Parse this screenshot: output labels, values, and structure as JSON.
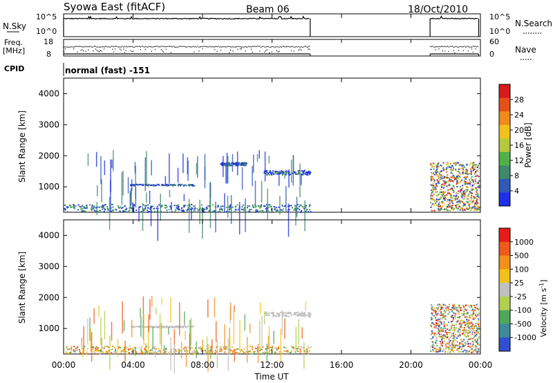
{
  "header": {
    "station": "Syowa East (fitACF)",
    "beam": "Beam 06",
    "date": "18/Oct/2010"
  },
  "status_panels": {
    "nsky_label": "N.Sky",
    "nsky_ticks": [
      "10^5",
      "10^0"
    ],
    "nsearch_label": "N.Search",
    "nsearch_ticks": [
      "10^5",
      "10^0"
    ],
    "freq_label": "Freq.",
    "freq_unit": "[MHz]",
    "freq_ticks": [
      "18",
      "8"
    ],
    "nave_label": "Nave",
    "nave_ticks": [
      "60",
      "0"
    ],
    "cpid_label": "CPID",
    "cpid_value": "normal (fast) -151"
  },
  "time_axis": {
    "label": "Time UT",
    "ticks": [
      "00:00",
      "04:00",
      "08:00",
      "12:00",
      "16:00",
      "20:00",
      "00:00"
    ]
  },
  "colors": {
    "power": [
      "#1f2fe6",
      "#2f5ab8",
      "#3f8a6a",
      "#4fb04a",
      "#b6c93c",
      "#f2c21a",
      "#f08a1a",
      "#e8501a",
      "#d81a1a"
    ],
    "velocity": [
      "#e81a1a",
      "#f05a1a",
      "#f2901a",
      "#f2c21a",
      "#c0c0c0",
      "#b0d050",
      "#4fa85a",
      "#3f8a9a",
      "#2f4fd0"
    ]
  },
  "chart_data": [
    {
      "type": "line",
      "title": "N.Sky / N.Search",
      "ylim": [
        0,
        5
      ],
      "yscale": "log10",
      "x_hours": [
        0,
        0.5,
        1,
        2,
        4,
        6,
        8,
        10,
        12,
        14.2,
        21.1,
        22,
        23,
        23.9
      ],
      "values": [
        4.3,
        4.2,
        4.4,
        4.3,
        4.3,
        4.3,
        4.3,
        4.2,
        4.3,
        4.3,
        4.2,
        4.3,
        4.3,
        4.2
      ],
      "gaps": [
        [
          14.2,
          21.1
        ]
      ]
    },
    {
      "type": "scatter",
      "title": "Freq. / Nave",
      "ylim": [
        8,
        18
      ],
      "x_hours_range": [
        [
          0,
          14.2
        ],
        [
          21.1,
          23.9
        ]
      ],
      "freq_values": [
        12.5,
        12.3,
        12.0,
        12.6,
        12.4
      ],
      "nave_values": [
        37,
        35,
        30,
        38,
        36
      ]
    },
    {
      "type": "heatmap",
      "title": "Power",
      "ylabel": "Slant Range [km]",
      "xlabel": "Time UT",
      "ylim": [
        180,
        4500
      ],
      "yticks": [
        "1000",
        "2000",
        "3000",
        "4000"
      ],
      "colorbar_label": "Power [dB]",
      "colorbar_ticks": [
        "28",
        "24",
        "20",
        "16",
        "12",
        "8",
        "4"
      ],
      "colorbar_range": [
        0,
        30
      ],
      "features": [
        {
          "name": "near-range echoes",
          "t": [
            0,
            14.2
          ],
          "range_km": [
            200,
            450
          ]
        },
        {
          "name": "1000 km band",
          "t": [
            3.8,
            7.5
          ],
          "range_km": [
            1050,
            1100
          ]
        },
        {
          "name": "1500 km band",
          "t": [
            11.5,
            14.2
          ],
          "range_km": [
            1400,
            1550
          ]
        },
        {
          "name": "1750 km band",
          "t": [
            9.0,
            10.5
          ],
          "range_km": [
            1700,
            1800
          ]
        },
        {
          "name": "night cluster",
          "t": [
            21.1,
            23.9
          ],
          "range_km": [
            250,
            1800
          ]
        }
      ]
    },
    {
      "type": "heatmap",
      "title": "Velocity",
      "ylabel": "Slant Range [km]",
      "xlabel": "Time UT",
      "ylim": [
        180,
        4500
      ],
      "yticks": [
        "1000",
        "2000",
        "3000",
        "4000"
      ],
      "colorbar_label": "Velocity [m s",
      "colorbar_unit_suffix": "-1",
      "colorbar_ticks": [
        "1000",
        "500",
        "100",
        "25",
        "-25",
        "-100",
        "-500",
        "-1000"
      ],
      "features": [
        {
          "name": "near-range echoes",
          "t": [
            0,
            14.2
          ],
          "range_km": [
            200,
            450
          ]
        },
        {
          "name": "1000 km band",
          "t": [
            3.8,
            7.5
          ],
          "range_km": [
            1050,
            1100
          ]
        },
        {
          "name": "1500 km band",
          "t": [
            11.5,
            14.2
          ],
          "range_km": [
            1400,
            1550
          ]
        },
        {
          "name": "night cluster",
          "t": [
            21.1,
            23.9
          ],
          "range_km": [
            250,
            1800
          ]
        }
      ]
    }
  ]
}
